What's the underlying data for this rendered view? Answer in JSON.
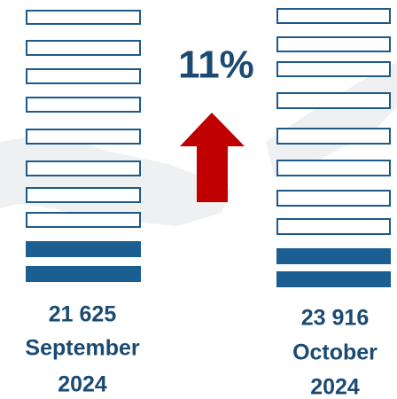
{
  "change": "11%",
  "left": {
    "value": "21 625",
    "month": "September",
    "year": "2024"
  },
  "right": {
    "value": "23 916",
    "month": "October",
    "year": "2024"
  }
}
